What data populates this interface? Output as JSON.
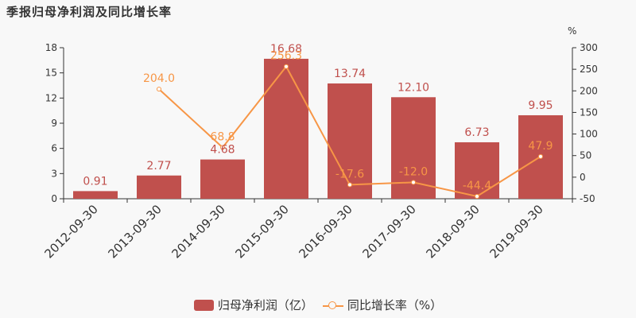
{
  "title": "季报归母净利润及同比增长率",
  "legend": {
    "bar_label": "归母净利润（亿）",
    "line_label": "同比增长率（%）"
  },
  "colors": {
    "bar": "#c0504d",
    "line": "#f79646",
    "axis": "#333333",
    "background": "#f8f8f8"
  },
  "chart_data": {
    "type": "bar+line",
    "title": "季报归母净利润及同比增长率",
    "categories": [
      "2012-09-30",
      "2013-09-30",
      "2014-09-30",
      "2015-09-30",
      "2016-09-30",
      "2017-09-30",
      "2018-09-30",
      "2019-09-30"
    ],
    "series": [
      {
        "name": "归母净利润（亿）",
        "type": "bar",
        "axis": "left",
        "values": [
          0.91,
          2.77,
          4.68,
          16.68,
          13.74,
          12.1,
          6.73,
          9.95
        ],
        "labels": [
          "0.91",
          "2.77",
          "4.68",
          "16.68",
          "13.74",
          "12.10",
          "6.73",
          "9.95"
        ]
      },
      {
        "name": "同比增长率（%）",
        "type": "line",
        "axis": "right",
        "values": [
          null,
          204.0,
          68.8,
          256.3,
          -17.6,
          -12.0,
          -44.4,
          47.9
        ],
        "labels": [
          "",
          "204.0",
          "68.8",
          "256.3",
          "-17.6",
          "-12.0",
          "-44.4",
          "47.9"
        ]
      }
    ],
    "y_left": {
      "ylim": [
        0,
        18
      ],
      "ticks": [
        0,
        3,
        6,
        9,
        12,
        15,
        18
      ]
    },
    "y_right": {
      "label": "%",
      "ylim": [
        -50,
        300
      ],
      "ticks": [
        -50,
        0,
        50,
        100,
        150,
        200,
        250,
        300
      ]
    },
    "xlabel": "",
    "grid": false,
    "legend_position": "bottom"
  }
}
